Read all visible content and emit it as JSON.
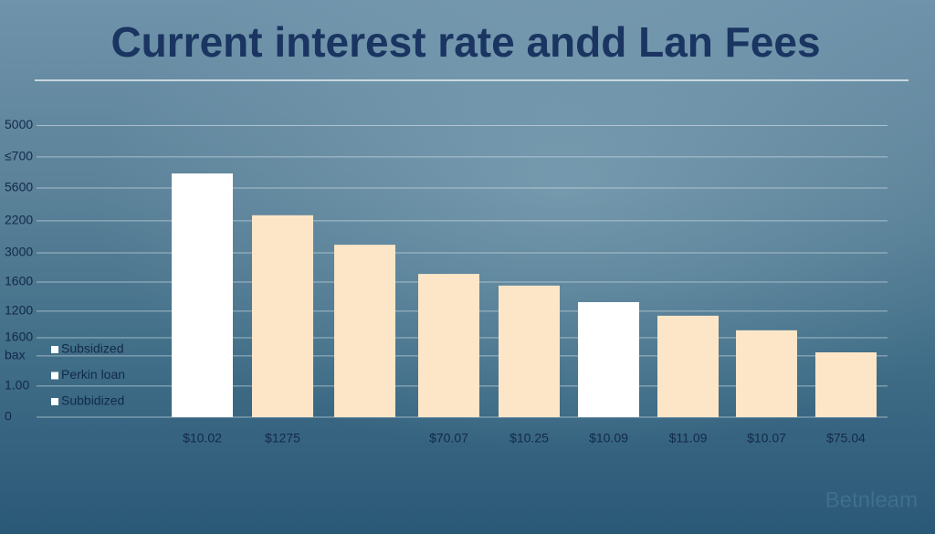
{
  "chart_data": {
    "type": "bar",
    "title": "Current interest rate andd Lan Fees",
    "categories": [
      "$10.02",
      "$1275",
      null,
      "$70.07",
      "$10.25",
      "$10.09",
      "$11.09",
      "$10.07",
      "$75.04"
    ],
    "values": [
      7.52,
      6.23,
      5.32,
      4.42,
      4.06,
      3.55,
      3.13,
      2.68,
      2.0
    ],
    "colors": [
      "#ffffff",
      "#fde6c8",
      "#fde6c8",
      "#fde6c8",
      "#fde6c8",
      "#ffffff",
      "#fde6c8",
      "#fde6c8",
      "#fde6c8"
    ],
    "ylim": [
      0,
      9.2
    ],
    "yticks": [
      0,
      {
        "value": 0.96,
        "label": "1.00"
      },
      {
        "value": 1.89,
        "label": "bax"
      },
      {
        "value": 2.45,
        "label": "1600"
      },
      {
        "value": 3.27,
        "label": "1200"
      },
      {
        "value": 4.17,
        "label": "1600"
      },
      {
        "value": 5.07,
        "label": "3000"
      },
      {
        "value": 6.06,
        "label": "2200"
      },
      {
        "value": 7.07,
        "label": "5600"
      },
      {
        "value": 8.03,
        "label": "≤700"
      },
      {
        "value": 9.0,
        "label": "5000"
      }
    ],
    "grid": true,
    "legend": [
      "Subsidized",
      "Perkin loan",
      "Subbidized"
    ],
    "watermark": "Betnleam"
  }
}
